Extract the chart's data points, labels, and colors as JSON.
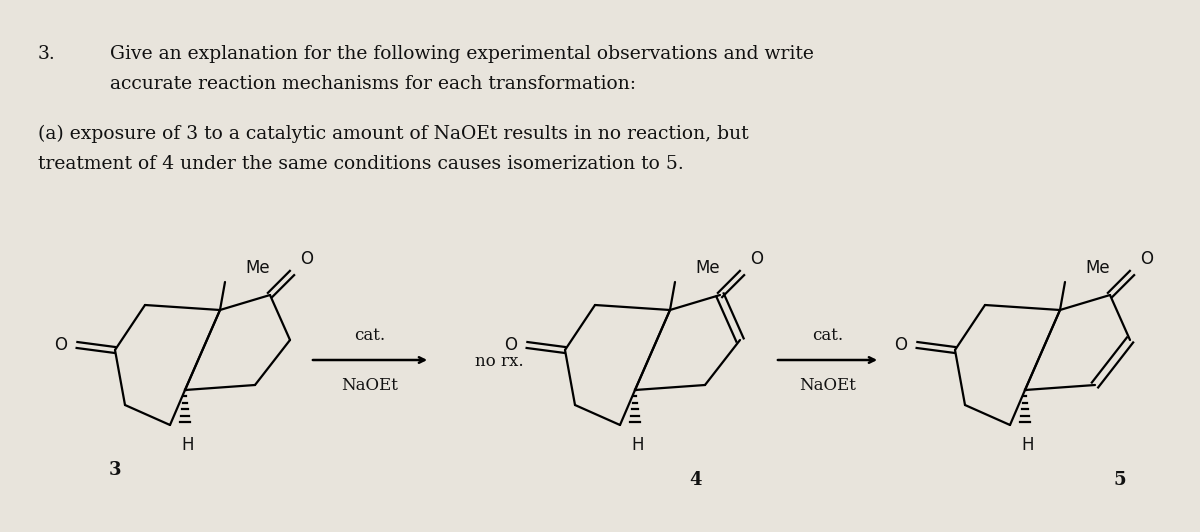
{
  "background_color": "#e8e4dc",
  "text_color": "#111111",
  "title_num": "3.",
  "title_line1": "Give an explanation for the following experimental observations and write",
  "title_line2": "accurate reaction mechanisms for each transformation:",
  "subtitle1": "(a) exposure of 3 to a catalytic amount of NaOEt results in no reaction, but",
  "subtitle2": "treatment of 4 under the same conditions causes isomerization to 5.",
  "label3": "3",
  "label4": "4",
  "label5": "5",
  "cat_label": "cat.",
  "NaOEt_label": "NaOEt",
  "no_rx_label": "no rx.",
  "Me_label": "Me",
  "H_label": "H",
  "O_label": "O",
  "font_size_header": 13.5,
  "font_size_body": 13.5,
  "font_size_chem": 12,
  "font_size_num": 13
}
